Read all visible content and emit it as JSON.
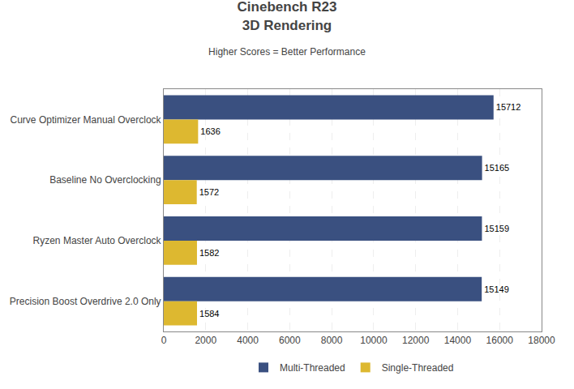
{
  "chart_data": {
    "type": "bar",
    "orientation": "horizontal",
    "title": "Cinebench R23\n3D Rendering",
    "subtitle": "Higher Scores = Better Performance",
    "categories": [
      "Curve Optimizer Manual Overclock",
      "Baseline No Overclocking",
      "Ryzen Master Auto Overclock",
      "Precision Boost Overdrive 2.0 Only"
    ],
    "series": [
      {
        "name": "Multi-Threaded",
        "color": "#3a5080",
        "values": [
          15712,
          15165,
          15159,
          15149
        ]
      },
      {
        "name": "Single-Threaded",
        "color": "#ddb830",
        "values": [
          1636,
          1572,
          1582,
          1584
        ]
      }
    ],
    "xlim": [
      0,
      18000
    ],
    "xticks": [
      0,
      2000,
      4000,
      6000,
      8000,
      10000,
      12000,
      14000,
      16000,
      18000
    ],
    "grid": true,
    "data_labels": true,
    "legend": "bottom"
  }
}
